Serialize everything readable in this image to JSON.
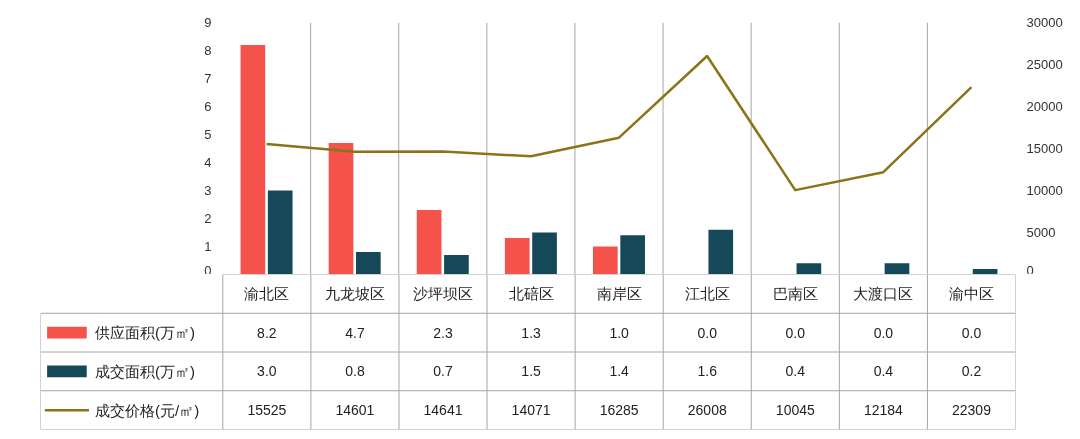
{
  "chart_data": {
    "type": "bar",
    "categories": [
      "渝北区",
      "九龙坡区",
      "沙坪坝区",
      "北碚区",
      "南岸区",
      "江北区",
      "巴南区",
      "大渡口区",
      "渝中区"
    ],
    "series": [
      {
        "name": "供应面积(万㎡)",
        "color": "#f4524a",
        "values": [
          8.2,
          4.7,
          2.3,
          1.3,
          1.0,
          0.0,
          0.0,
          0.0,
          0.0
        ],
        "value_labels": [
          "8.2",
          "4.7",
          "2.3",
          "1.3",
          "1.0",
          "0.0",
          "0.0",
          "0.0",
          "0.0"
        ]
      },
      {
        "name": "成交面积(万㎡)",
        "color": "#15495a",
        "values": [
          3.0,
          0.8,
          0.7,
          1.5,
          1.4,
          1.6,
          0.4,
          0.4,
          0.2
        ],
        "value_labels": [
          "3.0",
          "0.8",
          "0.7",
          "1.5",
          "1.4",
          "1.6",
          "0.4",
          "0.4",
          "0.2"
        ]
      },
      {
        "name": "成交价格(元/㎡)",
        "type": "line",
        "axis": "y2",
        "color": "#8b7317",
        "values": [
          15525,
          14601,
          14641,
          14071,
          16285,
          26008,
          10045,
          12184,
          22309
        ],
        "value_labels": [
          "15525",
          "14601",
          "14641",
          "14071",
          "16285",
          "26008",
          "10045",
          "12184",
          "22309"
        ]
      }
    ],
    "ylim": [
      0,
      9
    ],
    "yticks": [
      0,
      1,
      2,
      3,
      4,
      5,
      6,
      7,
      8,
      9
    ],
    "y2lim": [
      0,
      30000
    ],
    "y2ticks": [
      0,
      5000,
      10000,
      15000,
      20000,
      25000,
      30000
    ],
    "legend": "bottom",
    "grid": false
  }
}
